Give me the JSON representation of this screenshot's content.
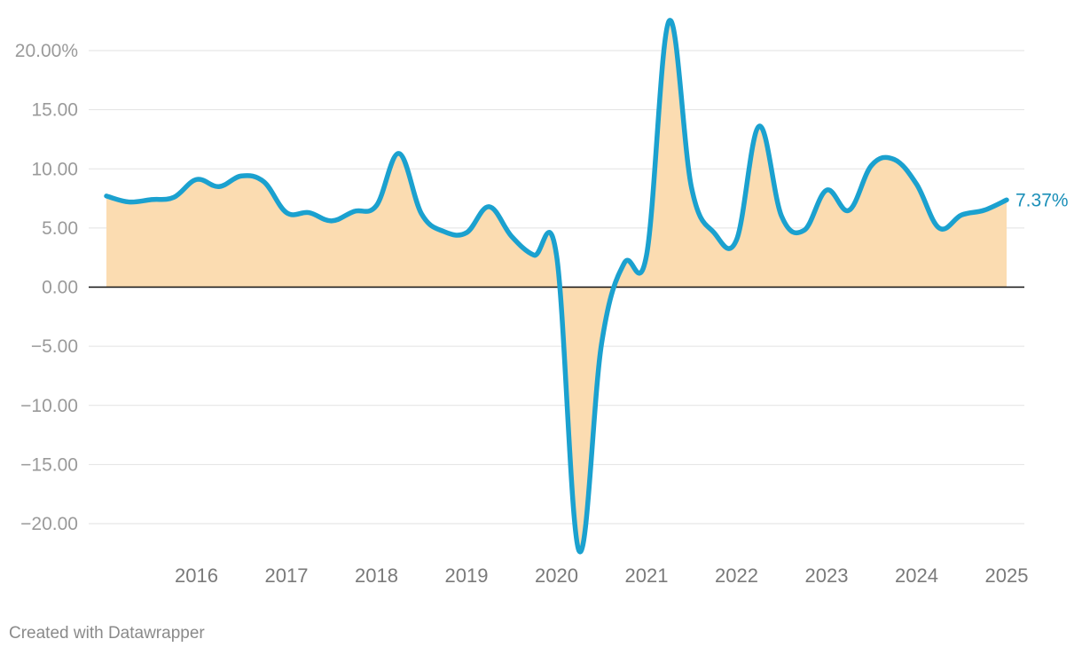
{
  "chart_data": {
    "type": "area",
    "ylim": [
      -20,
      20
    ],
    "yticks": [
      20,
      15,
      10,
      5,
      0,
      -5,
      -10,
      -15,
      -20
    ],
    "ytick_labels": [
      "20.00%",
      "15.00",
      "10.00",
      "5.00",
      "0.00",
      "−5.00",
      "−10.00",
      "−15.00",
      "−20.00"
    ],
    "xticks": [
      2016,
      2017,
      2018,
      2019,
      2020,
      2021,
      2022,
      2023,
      2024,
      2025
    ],
    "xtick_labels": [
      "2016",
      "2017",
      "2018",
      "2019",
      "2020",
      "2021",
      "2022",
      "2023",
      "2024",
      "2025"
    ],
    "grid": true,
    "end_label": "7.37%",
    "series": [
      {
        "x": [
          2015.0,
          2015.25,
          2015.5,
          2015.75,
          2016.0,
          2016.25,
          2016.5,
          2016.75,
          2017.0,
          2017.25,
          2017.5,
          2017.75,
          2018.0,
          2018.25,
          2018.5,
          2018.75,
          2019.0,
          2019.25,
          2019.5,
          2019.75,
          2020.0,
          2020.25,
          2020.5,
          2020.75,
          2021.0,
          2021.25,
          2021.5,
          2021.75,
          2022.0,
          2022.25,
          2022.5,
          2022.75,
          2023.0,
          2023.25,
          2023.5,
          2023.75,
          2024.0,
          2024.25,
          2024.5,
          2024.75,
          2025.0
        ],
        "values": [
          7.7,
          7.2,
          7.4,
          7.6,
          9.1,
          8.5,
          9.4,
          8.9,
          6.3,
          6.3,
          5.6,
          6.4,
          6.9,
          11.3,
          6.2,
          4.7,
          4.6,
          6.8,
          4.3,
          2.7,
          2.7,
          -22.3,
          -4.8,
          2.0,
          2.7,
          22.5,
          8.4,
          4.6,
          4.0,
          13.6,
          6.0,
          4.8,
          8.2,
          6.5,
          10.3,
          10.8,
          8.7,
          5.0,
          6.1,
          6.5,
          7.37
        ],
        "line_color": "#1ba1cf",
        "fill_color": "#fbdcb1"
      }
    ]
  },
  "colors": {
    "line": "#1ba1cf",
    "fill": "#fbdcb1",
    "end_label": "#1a8fb8",
    "grid": "#e2e2e2",
    "zero": "#111111"
  },
  "footer": {
    "credit": "Created with Datawrapper"
  }
}
